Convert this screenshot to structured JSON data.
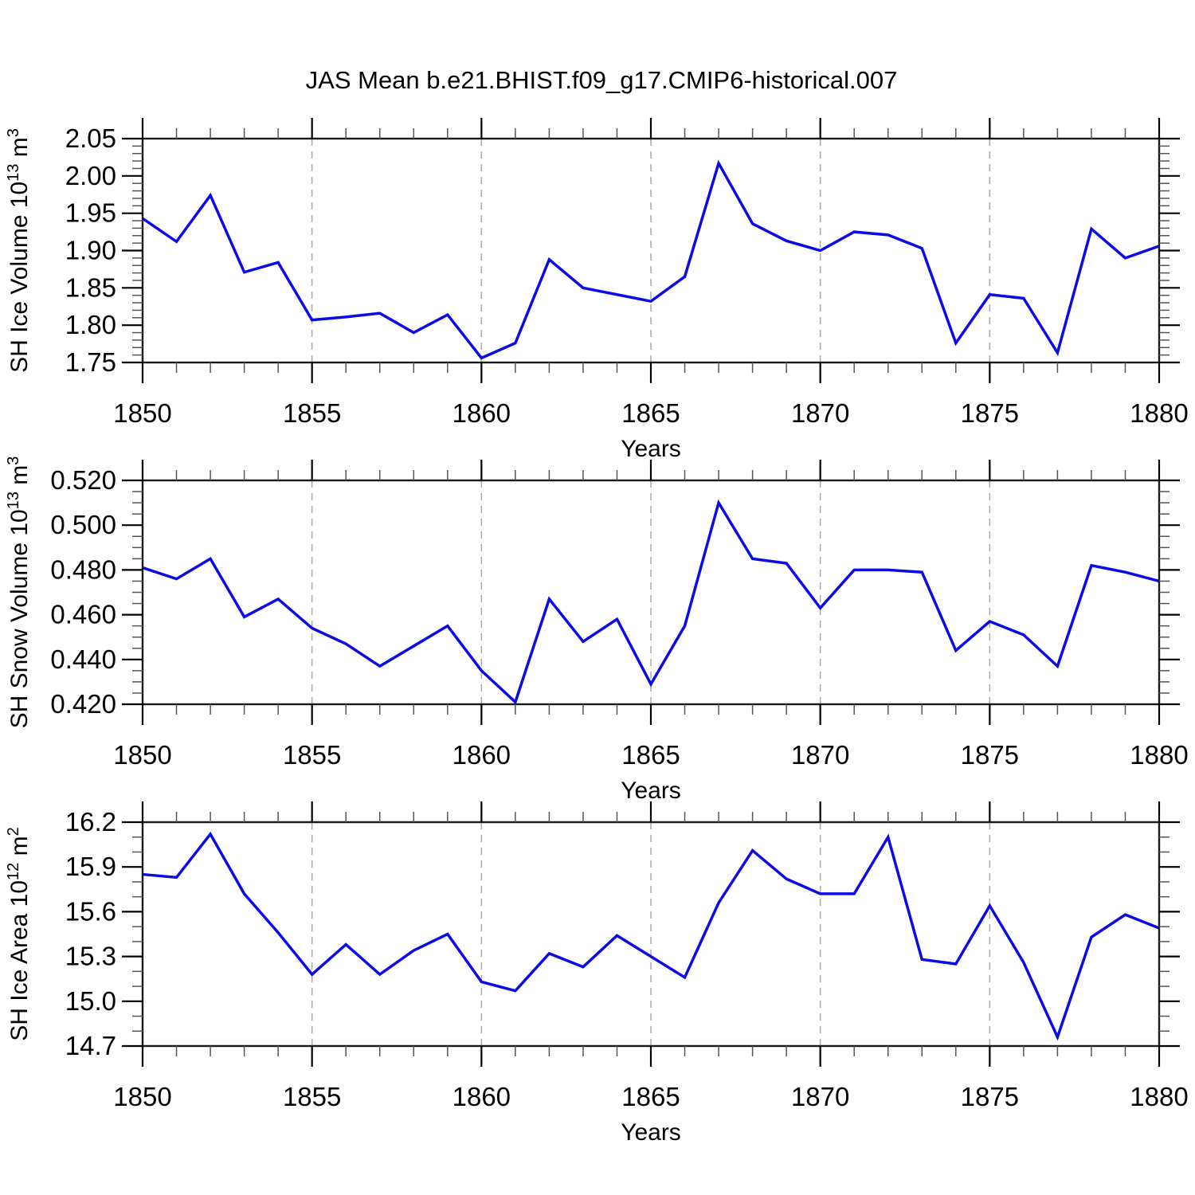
{
  "title": "JAS Mean b.e21.BHIST.f09_g17.CMIP6-historical.007",
  "accent_color": "#0b0be8",
  "gridline_color": "#aaaaaa",
  "chart_data": [
    {
      "type": "line",
      "id": "sh-ice-volume",
      "ylabel_plain": "SH Ice Volume 10^13 m^3",
      "ylabel_parts": [
        {
          "text": "SH Ice Volume 10",
          "sup": false
        },
        {
          "text": "13",
          "sup": true
        },
        {
          "text": " m",
          "sup": false
        },
        {
          "text": "3",
          "sup": true
        }
      ],
      "xlabel": "Years",
      "years": [
        1850,
        1851,
        1852,
        1853,
        1854,
        1855,
        1856,
        1857,
        1858,
        1859,
        1860,
        1861,
        1862,
        1863,
        1864,
        1865,
        1866,
        1867,
        1868,
        1869,
        1870,
        1871,
        1872,
        1873,
        1874,
        1875,
        1876,
        1877,
        1878,
        1879,
        1880
      ],
      "values": [
        1.943,
        1.912,
        1.974,
        1.871,
        1.884,
        1.807,
        1.811,
        1.816,
        1.79,
        1.814,
        1.756,
        1.776,
        1.888,
        1.85,
        1.841,
        1.832,
        1.865,
        2.017,
        1.936,
        1.913,
        1.9,
        1.925,
        1.921,
        1.903,
        1.776,
        1.841,
        1.836,
        1.763,
        1.929,
        1.89,
        1.906
      ],
      "xlim": [
        1850,
        1880
      ],
      "ylim": [
        1.75,
        2.05
      ],
      "xticks": {
        "values": [
          1850,
          1855,
          1860,
          1865,
          1870,
          1875,
          1880
        ],
        "labels": [
          "1850",
          "1855",
          "1860",
          "1865",
          "1870",
          "1875",
          "1880"
        ]
      },
      "yticks": {
        "values": [
          1.75,
          1.8,
          1.85,
          1.9,
          1.95,
          2.0,
          2.05
        ],
        "labels": [
          "1.75",
          "1.80",
          "1.85",
          "1.90",
          "1.95",
          "2.00",
          "2.05"
        ]
      },
      "ytick_minor_step": 0.01,
      "xtick_minor_step": 1,
      "gridlines_x": [
        1855,
        1860,
        1865,
        1870,
        1875
      ],
      "grid": "vertical-dashed",
      "legend": null
    },
    {
      "type": "line",
      "id": "sh-snow-volume",
      "ylabel_plain": "SH Snow Volume 10^13 m^3",
      "ylabel_parts": [
        {
          "text": "SH Snow Volume 10",
          "sup": false
        },
        {
          "text": "13",
          "sup": true
        },
        {
          "text": " m",
          "sup": false
        },
        {
          "text": "3",
          "sup": true
        }
      ],
      "xlabel": "Years",
      "years": [
        1850,
        1851,
        1852,
        1853,
        1854,
        1855,
        1856,
        1857,
        1858,
        1859,
        1860,
        1861,
        1862,
        1863,
        1864,
        1865,
        1866,
        1867,
        1868,
        1869,
        1870,
        1871,
        1872,
        1873,
        1874,
        1875,
        1876,
        1877,
        1878,
        1879,
        1880
      ],
      "values": [
        0.481,
        0.476,
        0.485,
        0.459,
        0.467,
        0.454,
        0.447,
        0.437,
        0.446,
        0.455,
        0.435,
        0.421,
        0.467,
        0.448,
        0.458,
        0.429,
        0.455,
        0.51,
        0.485,
        0.483,
        0.463,
        0.48,
        0.48,
        0.479,
        0.444,
        0.457,
        0.451,
        0.437,
        0.482,
        0.479,
        0.475
      ],
      "xlim": [
        1850,
        1880
      ],
      "ylim": [
        0.42,
        0.52
      ],
      "xticks": {
        "values": [
          1850,
          1855,
          1860,
          1865,
          1870,
          1875,
          1880
        ],
        "labels": [
          "1850",
          "1855",
          "1860",
          "1865",
          "1870",
          "1875",
          "1880"
        ]
      },
      "yticks": {
        "values": [
          0.42,
          0.44,
          0.46,
          0.48,
          0.5,
          0.52
        ],
        "labels": [
          "0.420",
          "0.440",
          "0.460",
          "0.480",
          "0.500",
          "0.520"
        ]
      },
      "ytick_minor_step": 0.005,
      "xtick_minor_step": 1,
      "gridlines_x": [
        1855,
        1860,
        1865,
        1870,
        1875
      ],
      "grid": "vertical-dashed",
      "legend": null
    },
    {
      "type": "line",
      "id": "sh-ice-area",
      "ylabel_plain": "SH Ice Area 10^12 m^2",
      "ylabel_parts": [
        {
          "text": "SH Ice Area 10",
          "sup": false
        },
        {
          "text": "12",
          "sup": true
        },
        {
          "text": " m",
          "sup": false
        },
        {
          "text": "2",
          "sup": true
        }
      ],
      "xlabel": "Years",
      "years": [
        1850,
        1851,
        1852,
        1853,
        1854,
        1855,
        1856,
        1857,
        1858,
        1859,
        1860,
        1861,
        1862,
        1863,
        1864,
        1865,
        1866,
        1867,
        1868,
        1869,
        1870,
        1871,
        1872,
        1873,
        1874,
        1875,
        1876,
        1877,
        1878,
        1879,
        1880
      ],
      "values": [
        15.85,
        15.83,
        16.12,
        15.72,
        15.46,
        15.18,
        15.38,
        15.18,
        15.34,
        15.45,
        15.13,
        15.07,
        15.32,
        15.23,
        15.44,
        15.3,
        15.16,
        15.66,
        16.01,
        15.82,
        15.72,
        15.72,
        16.1,
        15.28,
        15.25,
        15.64,
        15.26,
        14.76,
        15.43,
        15.58,
        15.49
      ],
      "xlim": [
        1850,
        1880
      ],
      "ylim": [
        14.7,
        16.2
      ],
      "xticks": {
        "values": [
          1850,
          1855,
          1860,
          1865,
          1870,
          1875,
          1880
        ],
        "labels": [
          "1850",
          "1855",
          "1860",
          "1865",
          "1870",
          "1875",
          "1880"
        ]
      },
      "yticks": {
        "values": [
          14.7,
          15.0,
          15.3,
          15.6,
          15.9,
          16.2
        ],
        "labels": [
          "14.7",
          "15.0",
          "15.3",
          "15.6",
          "15.9",
          "16.2"
        ]
      },
      "ytick_minor_step": 0.1,
      "xtick_minor_step": 1,
      "gridlines_x": [
        1855,
        1860,
        1865,
        1870,
        1875
      ],
      "grid": "vertical-dashed",
      "legend": null
    }
  ]
}
